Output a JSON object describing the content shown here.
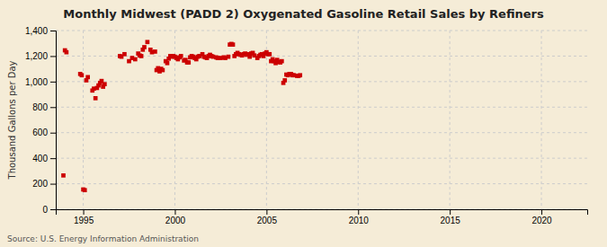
{
  "chart_data": {
    "type": "scatter",
    "title": "Monthly Midwest (PADD 2) Oxygenated Gasoline Retail Sales by Refiners",
    "y_label": "Thousand Gallons per Day",
    "annotations": [
      "Source: U.S. Energy Information Administration"
    ],
    "color": "#cc0000",
    "marker": "square",
    "grid": true,
    "xlim": [
      1993.5,
      2022.5
    ],
    "ylim": [
      0,
      1400
    ],
    "xticks": [
      1995,
      2000,
      2005,
      2010,
      2015,
      2020
    ],
    "yticks": [
      0,
      200,
      400,
      600,
      800,
      {
        "value": 1000,
        "label": "1,000"
      },
      {
        "value": 1200,
        "label": "1,200"
      },
      {
        "value": 1400,
        "label": "1,400"
      }
    ],
    "x": [
      1993.917,
      1994.0,
      1994.083,
      1994.917,
      1994.833,
      1995.0,
      1995.083,
      1995.167,
      1995.25,
      1995.5,
      1995.583,
      1995.667,
      1995.75,
      1995.833,
      1995.917,
      1996.0,
      1996.083,
      1996.167,
      1997.0,
      1997.083,
      1997.25,
      1997.5,
      1997.667,
      1997.833,
      1998.0,
      1998.083,
      1998.167,
      1998.25,
      1998.333,
      1998.5,
      1998.667,
      1998.75,
      1998.917,
      1999.0,
      1999.083,
      1999.167,
      1999.25,
      1999.333,
      1999.5,
      1999.583,
      1999.667,
      1999.75,
      1999.833,
      1999.917,
      2000.0,
      2000.083,
      2000.167,
      2000.25,
      2000.333,
      2000.5,
      2000.583,
      2000.667,
      2000.75,
      2000.833,
      2000.917,
      2001.0,
      2001.083,
      2001.167,
      2001.25,
      2001.333,
      2001.5,
      2001.583,
      2001.667,
      2001.75,
      2001.833,
      2001.917,
      2002.0,
      2002.083,
      2002.25,
      2002.333,
      2002.5,
      2002.667,
      2002.75,
      2002.917,
      2003.0,
      2003.083,
      2003.167,
      2003.25,
      2003.333,
      2003.417,
      2003.5,
      2003.583,
      2003.667,
      2003.75,
      2003.833,
      2003.917,
      2004.0,
      2004.083,
      2004.167,
      2004.25,
      2004.333,
      2004.5,
      2004.583,
      2004.667,
      2004.75,
      2004.833,
      2004.917,
      2005.0,
      2005.083,
      2005.167,
      2005.25,
      2005.333,
      2005.417,
      2005.5,
      2005.583,
      2005.667,
      2005.75,
      2005.833,
      2005.917,
      2006.0,
      2006.083,
      2006.167,
      2006.25,
      2006.333,
      2006.417,
      2006.5,
      2006.667,
      2006.75,
      2006.833
    ],
    "values": [
      265,
      1245,
      1230,
      1050,
      1060,
      155,
      150,
      1010,
      1035,
      930,
      945,
      870,
      950,
      970,
      990,
      1005,
      960,
      980,
      1200,
      1195,
      1215,
      1160,
      1185,
      1175,
      1220,
      1205,
      1200,
      1250,
      1270,
      1310,
      1250,
      1230,
      1235,
      1090,
      1105,
      1080,
      1100,
      1090,
      1160,
      1145,
      1180,
      1200,
      1195,
      1200,
      1195,
      1185,
      1175,
      1190,
      1200,
      1165,
      1170,
      1150,
      1150,
      1190,
      1200,
      1195,
      1185,
      1175,
      1195,
      1200,
      1215,
      1195,
      1190,
      1185,
      1200,
      1210,
      1200,
      1195,
      1190,
      1185,
      1185,
      1190,
      1185,
      1195,
      1290,
      1295,
      1290,
      1200,
      1215,
      1225,
      1215,
      1210,
      1205,
      1215,
      1220,
      1210,
      1215,
      1195,
      1220,
      1225,
      1205,
      1185,
      1200,
      1210,
      1215,
      1200,
      1220,
      1230,
      1215,
      1215,
      1160,
      1175,
      1160,
      1145,
      1170,
      1155,
      1150,
      1160,
      990,
      1010,
      1055,
      1050,
      1060,
      1060,
      1050,
      1050,
      1045,
      1045,
      1050
    ]
  }
}
